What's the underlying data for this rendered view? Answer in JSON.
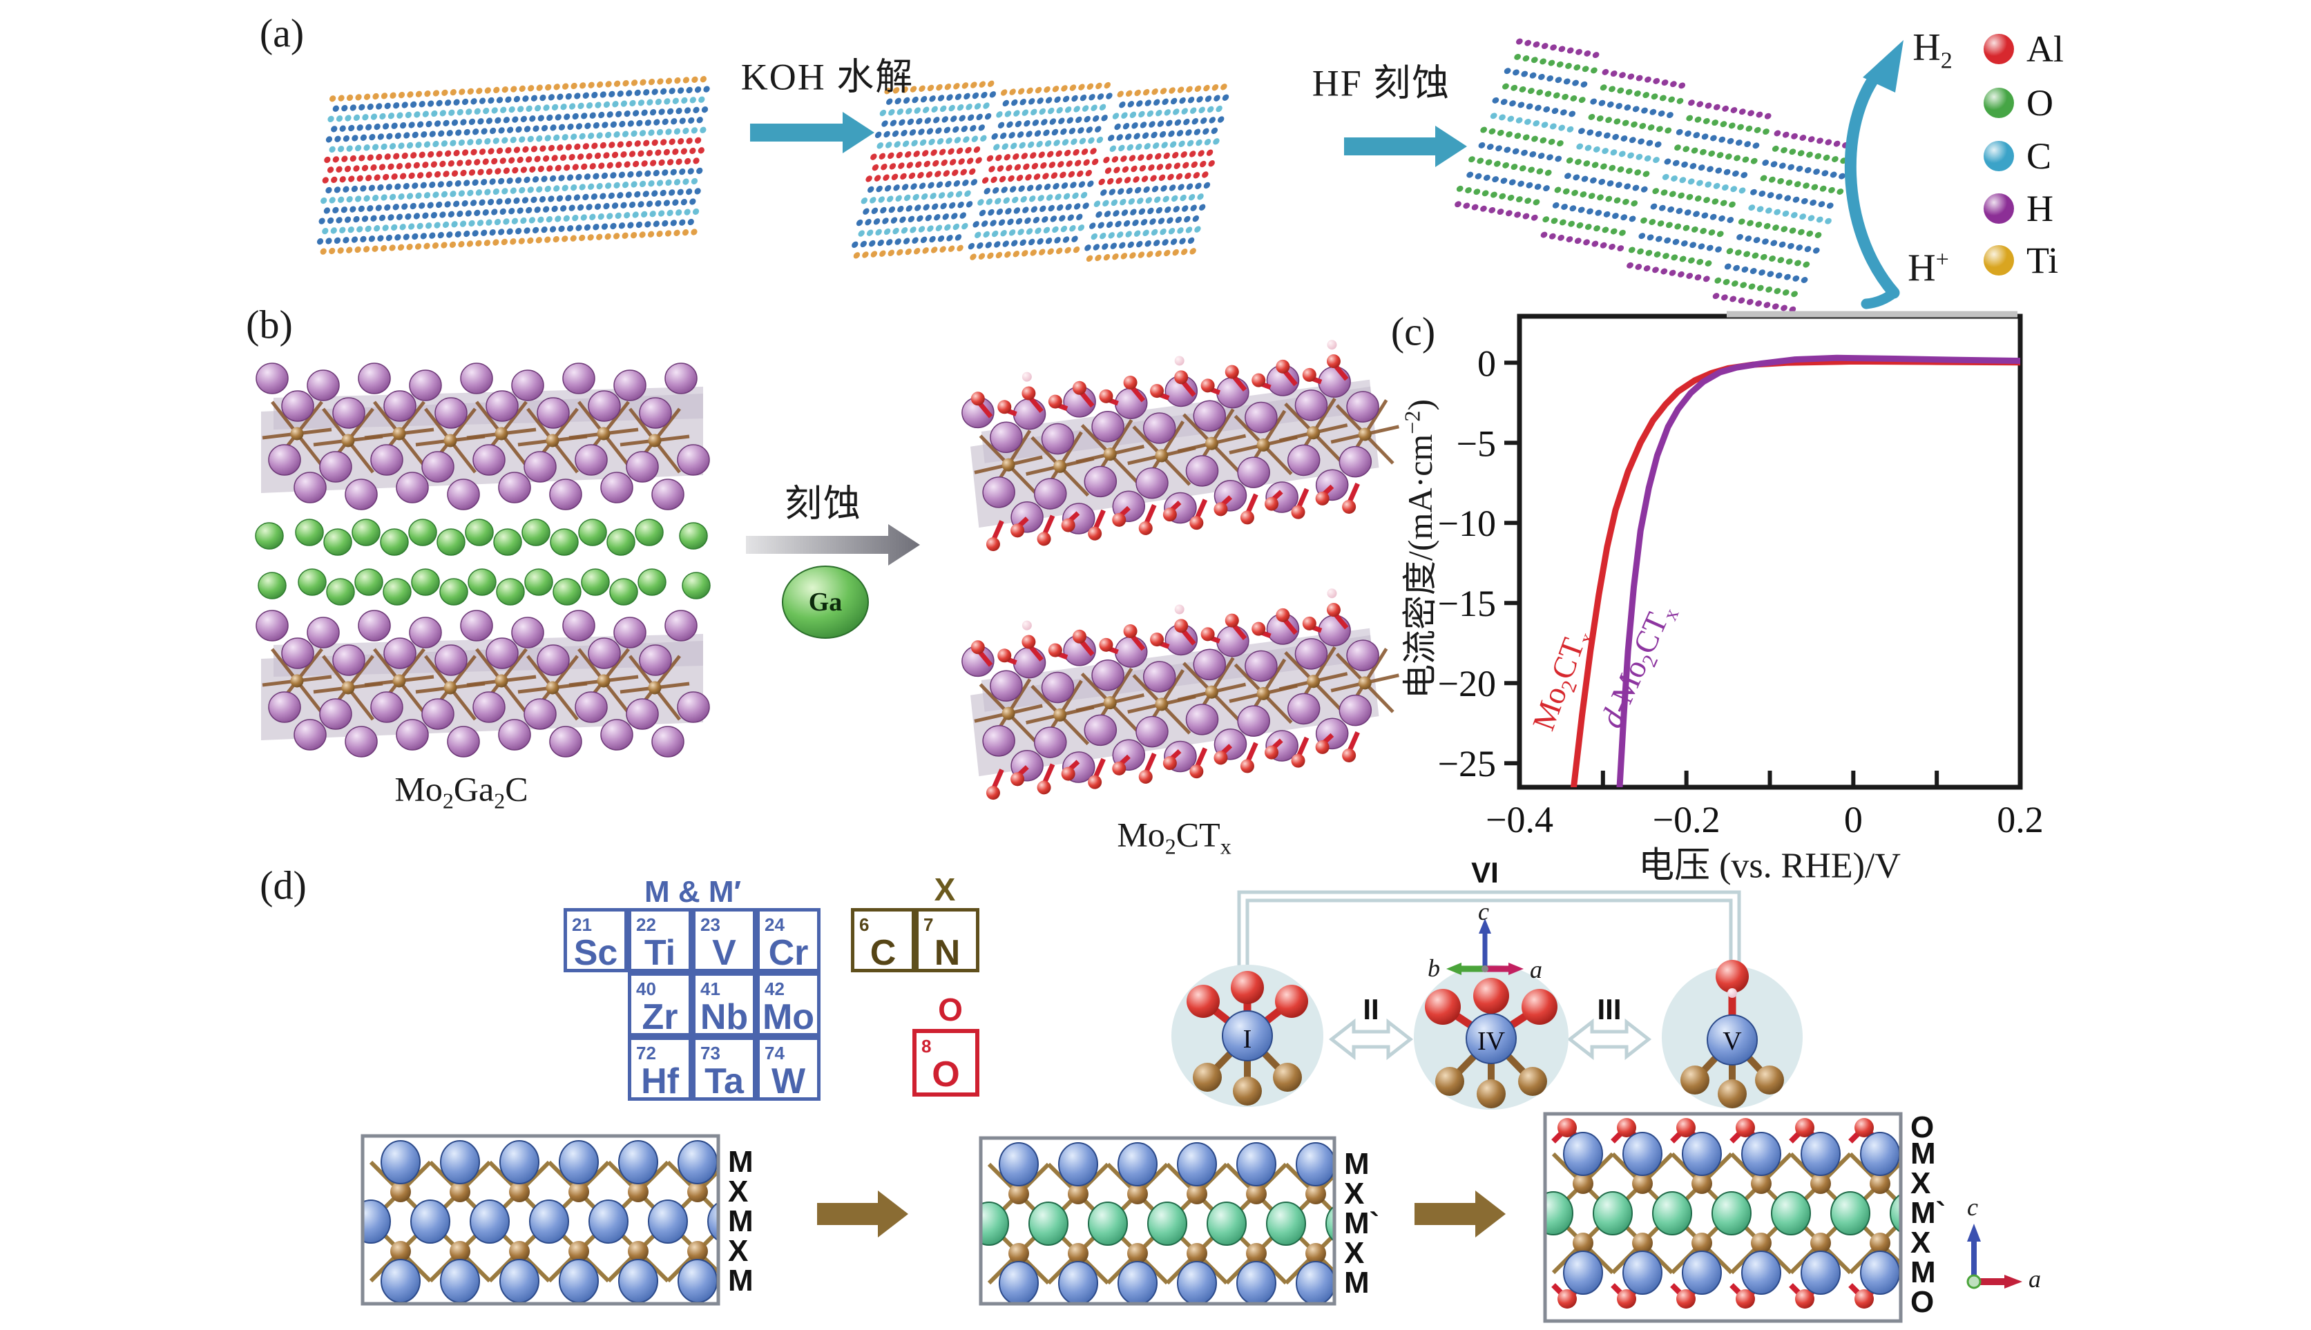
{
  "panel_labels": {
    "a": "(a)",
    "b": "(b)",
    "c": "(c)",
    "d": "(d)"
  },
  "panel_a": {
    "step1": "KOH 水解",
    "step2": "HF 刻蚀",
    "h2": {
      "base": "H",
      "sub": "2"
    },
    "hplus": {
      "base": "H",
      "sup": "+"
    },
    "legend": [
      {
        "name": "Al",
        "color": "#d7282e"
      },
      {
        "name": "O",
        "color": "#46a545"
      },
      {
        "name": "C",
        "color": "#3ba3c8"
      },
      {
        "name": "H",
        "color": "#8c2f96"
      },
      {
        "name": "Ti",
        "color": "#d9a520"
      }
    ]
  },
  "panel_b": {
    "etch": "刻蚀",
    "ga": "Ga",
    "reactant": {
      "p1": "Mo",
      "s1": "2",
      "p2": "Ga",
      "s2": "2",
      "p3": "C"
    },
    "product": {
      "p1": "Mo",
      "s1": "2",
      "p2": "CT",
      "s2": "x"
    }
  },
  "chart_data": {
    "type": "line",
    "title": "",
    "xlabel": "电压 (vs. RHE)/V",
    "ylabel_parts": {
      "main": "电流密度/(mA·cm",
      "sup": "−2",
      "close": ")"
    },
    "xlim": [
      -0.4,
      0.2
    ],
    "ylim": [
      -26.5,
      2.9
    ],
    "grid": false,
    "legend_position": "on-curve",
    "xticks": [
      {
        "v": -0.4,
        "label": "−0.4"
      },
      {
        "v": -0.2,
        "label": "−0.2"
      },
      {
        "v": 0,
        "label": "0"
      },
      {
        "v": 0.2,
        "label": "0.2"
      }
    ],
    "xminor": [
      -0.3,
      -0.1,
      0.1
    ],
    "yticks": [
      {
        "v": 0,
        "label": "0"
      },
      {
        "v": -5,
        "label": "−5"
      },
      {
        "v": -10,
        "label": "−10"
      },
      {
        "v": -15,
        "label": "−15"
      },
      {
        "v": -20,
        "label": "−20"
      },
      {
        "v": -25,
        "label": "−25"
      }
    ],
    "series": [
      {
        "name": "Mo2CTx",
        "label_parts": {
          "p0": "",
          "p1": "Mo",
          "s1": "2",
          "p2": "CT",
          "s2": "x"
        },
        "color": "#d7282e",
        "x": [
          -0.335,
          -0.325,
          -0.315,
          -0.305,
          -0.295,
          -0.285,
          -0.27,
          -0.255,
          -0.24,
          -0.225,
          -0.21,
          -0.19,
          -0.17,
          -0.15,
          -0.12,
          -0.08,
          0.0,
          0.1,
          0.2
        ],
        "y": [
          -26.5,
          -22,
          -18,
          -14.5,
          -11.5,
          -9.2,
          -6.8,
          -5.0,
          -3.6,
          -2.6,
          -1.8,
          -1.1,
          -0.65,
          -0.35,
          -0.12,
          0.0,
          0.08,
          0.05,
          0.02
        ]
      },
      {
        "name": "d-Mo2CTx",
        "label_parts": {
          "p0": "d-",
          "p1": "Mo",
          "s1": "2",
          "p2": "CT",
          "s2": "x"
        },
        "color": "#8d35a0",
        "x": [
          -0.28,
          -0.275,
          -0.27,
          -0.263,
          -0.255,
          -0.245,
          -0.235,
          -0.222,
          -0.21,
          -0.195,
          -0.18,
          -0.16,
          -0.14,
          -0.11,
          -0.07,
          -0.02,
          0.05,
          0.12,
          0.2
        ],
        "y": [
          -26.5,
          -22,
          -18,
          -14,
          -10.5,
          -7.8,
          -5.8,
          -4.0,
          -2.9,
          -1.9,
          -1.2,
          -0.6,
          -0.3,
          -0.05,
          0.2,
          0.3,
          0.25,
          0.18,
          0.12
        ]
      }
    ]
  },
  "panel_d": {
    "mm_header": "M & M′",
    "x_header": "X",
    "o_header": "O",
    "m_elements": [
      {
        "z": "21",
        "sym": "Sc"
      },
      {
        "z": "22",
        "sym": "Ti"
      },
      {
        "z": "23",
        "sym": "V"
      },
      {
        "z": "24",
        "sym": "Cr"
      },
      {
        "z": "40",
        "sym": "Zr"
      },
      {
        "z": "41",
        "sym": "Nb"
      },
      {
        "z": "42",
        "sym": "Mo"
      },
      {
        "z": "72",
        "sym": "Hf"
      },
      {
        "z": "73",
        "sym": "Ta"
      },
      {
        "z": "74",
        "sym": "W"
      }
    ],
    "x_elements": [
      {
        "z": "6",
        "sym": "C"
      },
      {
        "z": "7",
        "sym": "N"
      }
    ],
    "o_element": {
      "z": "8",
      "sym": "O"
    },
    "romans": {
      "r1": "I",
      "r2": "II",
      "r3": "III",
      "r4": "IV",
      "r5": "V",
      "r6": "VI"
    },
    "stack_left": [
      "M",
      "X",
      "M",
      "X",
      "M"
    ],
    "stack_mid": [
      "M",
      "X",
      "M`",
      "X",
      "M"
    ],
    "stack_right": [
      "O",
      "M",
      "X",
      "M`",
      "X",
      "M",
      "O"
    ],
    "axes_top": {
      "b": "b",
      "c": "c",
      "a": "a"
    },
    "axes_bottom": {
      "c": "c",
      "a": "a"
    },
    "colors": {
      "M": "#5b7fc4",
      "M`": "#57c194",
      "X": "#8a6a35",
      "O": "#d7282e"
    }
  }
}
